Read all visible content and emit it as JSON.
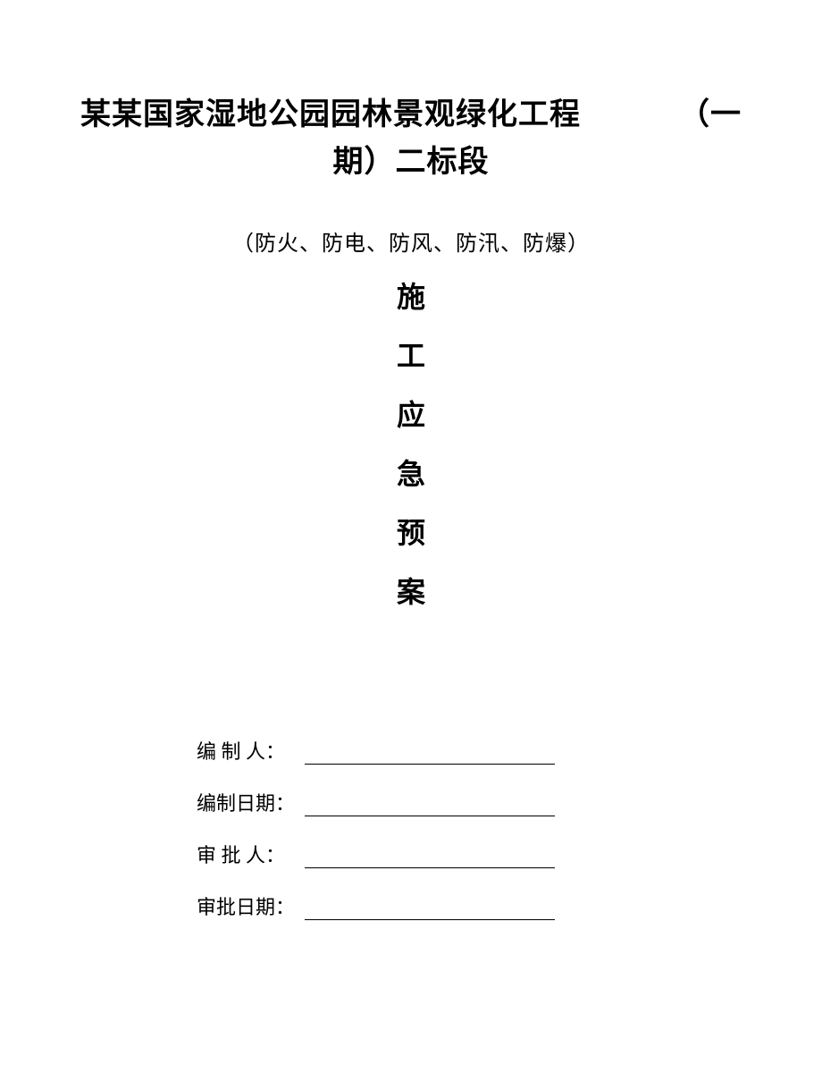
{
  "title": {
    "line1_main": "某某国家湿地公园园林景观绿化工程",
    "line1_suffix": "（一",
    "line2": "期）二标段"
  },
  "subtitle": "（防火、防电、防风、防汛、防爆）",
  "vertical_chars": [
    "施",
    "工",
    "应",
    "急",
    "预",
    "案"
  ],
  "signatures": [
    {
      "label": "编 制 人：",
      "spaced": false
    },
    {
      "label": "编制日期：",
      "spaced": false
    },
    {
      "label": "审 批 人：",
      "spaced": false
    },
    {
      "label": "审批日期：",
      "spaced": false
    }
  ],
  "colors": {
    "background": "#ffffff",
    "text": "#000000",
    "line": "#000000"
  },
  "fonts": {
    "title_size": 34,
    "subtitle_size": 24,
    "vertical_size": 32,
    "signature_size": 22
  }
}
